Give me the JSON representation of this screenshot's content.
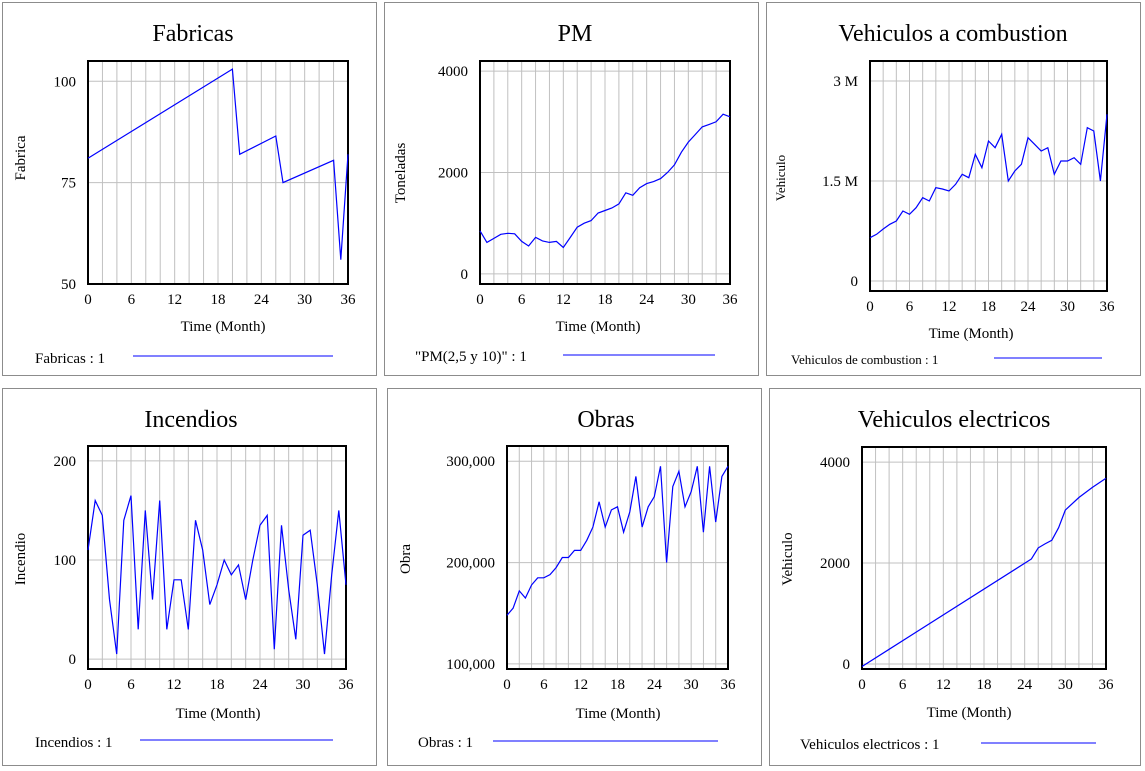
{
  "chart_data": [
    {
      "type": "line",
      "title": "Fabricas",
      "ylabel": "Fabrica",
      "xlabel": "Time (Month)",
      "xlim": [
        0,
        36
      ],
      "ylim": [
        50,
        105
      ],
      "xticks": [
        0,
        6,
        12,
        18,
        24,
        30,
        36
      ],
      "xtick_labels": [
        "0",
        "6",
        "12",
        "18",
        "24",
        "30",
        "36"
      ],
      "yticks": [
        50,
        75,
        100
      ],
      "ytick_labels": [
        "50",
        "75",
        "100"
      ],
      "legend": "Fabricas : 1",
      "color": "#0000ff",
      "x": [
        0,
        20,
        21,
        26,
        27,
        34,
        35,
        36
      ],
      "y": [
        81,
        103,
        82,
        86.5,
        75,
        80.5,
        56,
        82
      ]
    },
    {
      "type": "line",
      "title": "PM",
      "ylabel": "Toneladas",
      "xlabel": "Time (Month)",
      "xlim": [
        0,
        36
      ],
      "ylim": [
        -200,
        4200
      ],
      "xticks": [
        0,
        6,
        12,
        18,
        24,
        30,
        36
      ],
      "xtick_labels": [
        "0",
        "6",
        "12",
        "18",
        "24",
        "30",
        "36"
      ],
      "yticks": [
        0,
        2000,
        4000
      ],
      "ytick_labels": [
        "0",
        "2000",
        "4000"
      ],
      "legend": "\"PM(2,5 y 10)\" : 1",
      "color": "#0000ff",
      "x": [
        0,
        1,
        2,
        3,
        4,
        5,
        6,
        7,
        8,
        9,
        10,
        11,
        12,
        13,
        14,
        15,
        16,
        17,
        18,
        19,
        20,
        21,
        22,
        23,
        24,
        25,
        26,
        27,
        28,
        29,
        30,
        31,
        32,
        33,
        34,
        35,
        36
      ],
      "y": [
        850,
        620,
        700,
        780,
        800,
        790,
        640,
        550,
        720,
        650,
        620,
        640,
        520,
        720,
        920,
        1000,
        1050,
        1200,
        1250,
        1300,
        1380,
        1600,
        1550,
        1700,
        1780,
        1820,
        1880,
        2000,
        2150,
        2400,
        2600,
        2750,
        2900,
        2950,
        3000,
        3150,
        3100
      ]
    },
    {
      "type": "line",
      "title": "Vehiculos a combustion",
      "ylabel": "Vehiculo",
      "xlabel": "Time (Month)",
      "xlim": [
        0,
        36
      ],
      "ylim": [
        -150000,
        3300000
      ],
      "xticks": [
        0,
        6,
        12,
        18,
        24,
        30,
        36
      ],
      "xtick_labels": [
        "0",
        "6",
        "12",
        "18",
        "24",
        "30",
        "36"
      ],
      "yticks": [
        0,
        1500000,
        3000000
      ],
      "ytick_labels": [
        "0",
        "1.5 M",
        "3 M"
      ],
      "legend": "Vehiculos de combustion : 1",
      "color": "#0000ff",
      "x": [
        0,
        1,
        2,
        3,
        4,
        5,
        6,
        7,
        8,
        9,
        10,
        11,
        12,
        13,
        14,
        15,
        16,
        17,
        18,
        19,
        20,
        21,
        22,
        23,
        24,
        25,
        26,
        27,
        28,
        29,
        30,
        31,
        32,
        33,
        34,
        35,
        36
      ],
      "y": [
        650000,
        700000,
        780000,
        850000,
        900000,
        1050000,
        1000000,
        1100000,
        1250000,
        1200000,
        1400000,
        1380000,
        1350000,
        1450000,
        1600000,
        1550000,
        1900000,
        1700000,
        2100000,
        2000000,
        2200000,
        1500000,
        1650000,
        1750000,
        2150000,
        2050000,
        1950000,
        2000000,
        1600000,
        1800000,
        1800000,
        1850000,
        1750000,
        2300000,
        2250000,
        1500000,
        2500000
      ]
    },
    {
      "type": "line",
      "title": "Incendios",
      "ylabel": "Incendio",
      "xlabel": "Time (Month)",
      "xlim": [
        0,
        36
      ],
      "ylim": [
        -10,
        215
      ],
      "xticks": [
        0,
        6,
        12,
        18,
        24,
        30,
        36
      ],
      "xtick_labels": [
        "0",
        "6",
        "12",
        "18",
        "24",
        "30",
        "36"
      ],
      "yticks": [
        0,
        100,
        200
      ],
      "ytick_labels": [
        "0",
        "100",
        "200"
      ],
      "legend": "Incendios : 1",
      "color": "#0000ff",
      "x": [
        0,
        1,
        2,
        3,
        4,
        5,
        6,
        7,
        8,
        9,
        10,
        11,
        12,
        13,
        14,
        15,
        16,
        17,
        18,
        19,
        20,
        21,
        22,
        23,
        24,
        25,
        26,
        27,
        28,
        29,
        30,
        31,
        32,
        33,
        34,
        35,
        36
      ],
      "y": [
        110,
        160,
        145,
        60,
        5,
        140,
        165,
        30,
        150,
        60,
        160,
        30,
        80,
        80,
        30,
        140,
        110,
        55,
        75,
        100,
        85,
        95,
        60,
        100,
        135,
        145,
        10,
        135,
        70,
        20,
        125,
        130,
        75,
        5,
        85,
        150,
        75
      ]
    },
    {
      "type": "line",
      "title": "Obras",
      "ylabel": "Obra",
      "xlabel": "Time (Month)",
      "xlim": [
        0,
        36
      ],
      "ylim": [
        95000,
        315000
      ],
      "xticks": [
        0,
        6,
        12,
        18,
        24,
        30,
        36
      ],
      "xtick_labels": [
        "0",
        "6",
        "12",
        "18",
        "24",
        "30",
        "36"
      ],
      "yticks": [
        100000,
        200000,
        300000
      ],
      "ytick_labels": [
        "100,000",
        "200,000",
        "300,000"
      ],
      "legend": "Obras : 1",
      "color": "#0000ff",
      "x": [
        0,
        1,
        2,
        3,
        4,
        5,
        6,
        7,
        8,
        9,
        10,
        11,
        12,
        13,
        14,
        15,
        16,
        17,
        18,
        19,
        20,
        21,
        22,
        23,
        24,
        25,
        26,
        27,
        28,
        29,
        30,
        31,
        32,
        33,
        34,
        35,
        36
      ],
      "y": [
        148000,
        155000,
        172000,
        165000,
        178000,
        185000,
        185000,
        188000,
        195000,
        205000,
        205000,
        212000,
        212000,
        222000,
        235000,
        260000,
        235000,
        252000,
        255000,
        230000,
        250000,
        285000,
        235000,
        255000,
        265000,
        295000,
        200000,
        275000,
        290000,
        255000,
        270000,
        295000,
        230000,
        295000,
        240000,
        285000,
        295000
      ]
    },
    {
      "type": "line",
      "title": "Vehiculos electricos",
      "ylabel": "Vehiculo",
      "xlabel": "Time (Month)",
      "xlim": [
        0,
        36
      ],
      "ylim": [
        -100,
        4300
      ],
      "xticks": [
        0,
        6,
        12,
        18,
        24,
        30,
        36
      ],
      "xtick_labels": [
        "0",
        "6",
        "12",
        "18",
        "24",
        "30",
        "36"
      ],
      "yticks": [
        0,
        2000,
        4000
      ],
      "ytick_labels": [
        "0",
        "2000",
        "4000"
      ],
      "legend": "Vehiculos electricos : 1",
      "color": "#0000ff",
      "x": [
        0,
        25,
        26,
        27,
        28,
        29,
        30,
        32,
        34,
        36
      ],
      "y": [
        -50,
        2080,
        2300,
        2380,
        2450,
        2700,
        3050,
        3300,
        3500,
        3680
      ]
    }
  ]
}
